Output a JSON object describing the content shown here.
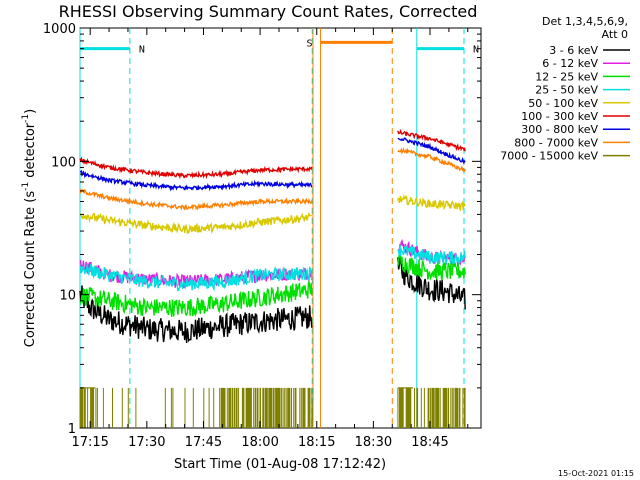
{
  "chart_data": {
    "type": "line",
    "title": "RHESSI Observing Summary Count Rates, Corrected",
    "xlabel": "Start Time (01-Aug-08 17:12:42)",
    "ylabel_main": "Corrected Count Rate (s",
    "ylabel_sup1": "-1",
    "ylabel_mid": " detector",
    "ylabel_sup2": "-1",
    "ylabel_end": ")",
    "y_scale": "log",
    "ylim": [
      1,
      1000
    ],
    "xlim_minutes": [
      -2.7,
      103.5
    ],
    "x_ticks": [
      "17:15",
      "17:30",
      "17:45",
      "18:00",
      "18:15",
      "18:30",
      "18:45"
    ],
    "y_ticks": [
      "1",
      "10",
      "100",
      "1000"
    ],
    "footer": "15-Oct-2021 01:15",
    "legend": {
      "placement": "top-right",
      "header1": "Det 1,3,4,5,6,9,",
      "header2": "Att 0",
      "entries": [
        {
          "label": "3 - 6 keV",
          "color": "#000000"
        },
        {
          "label": "6 - 12 keV",
          "color": "#e020e0"
        },
        {
          "label": "12 - 25 keV",
          "color": "#00e000"
        },
        {
          "label": "25 - 50 keV",
          "color": "#00e0e0"
        },
        {
          "label": "50 - 100 keV",
          "color": "#d8c800"
        },
        {
          "label": "100 - 300 keV",
          "color": "#e00000"
        },
        {
          "label": "300 - 800 keV",
          "color": "#0000e0"
        },
        {
          "label": "800 - 7000 keV",
          "color": "#ff8000"
        },
        {
          "label": "7000 - 15000 keV",
          "color": "#808000"
        }
      ]
    },
    "flags": [
      {
        "label": "N",
        "color": "#00e0e0",
        "start": -2.7,
        "end": 10.5,
        "level": 700
      },
      {
        "label": "N",
        "color": "#00e0e0",
        "start": 86.5,
        "end": 99.0,
        "level": 700
      },
      {
        "label": "S",
        "color": "#ff8000",
        "start": 3.0,
        "end": 1.7,
        "level": 780,
        "span": [
          61.0,
          80.0
        ]
      }
    ],
    "vlines": [
      {
        "t": -2.7,
        "color": "#00e0e0",
        "style": "solid"
      },
      {
        "t": 10.5,
        "color": "#00e0e0",
        "style": "dashed"
      },
      {
        "t": 58.8,
        "color": "#00e0e0",
        "style": "dashed"
      },
      {
        "t": 59.0,
        "color": "#ff8000",
        "style": "solid"
      },
      {
        "t": 61.0,
        "color": "#ff8000",
        "style": "solid"
      },
      {
        "t": 80.0,
        "color": "#ff8000",
        "style": "dashed"
      },
      {
        "t": 86.5,
        "color": "#00e0e0",
        "style": "solid"
      },
      {
        "t": 99.0,
        "color": "#00e0e0",
        "style": "dashed"
      }
    ],
    "segments": [
      [
        -2.7,
        58.8
      ],
      [
        81.5,
        99.5
      ]
    ],
    "series": [
      {
        "name": "3 - 6 keV",
        "color": "#000000",
        "seg1": [
          [
            -2.7,
            10
          ],
          [
            0,
            8
          ],
          [
            5,
            6.5
          ],
          [
            15,
            5.5
          ],
          [
            25,
            5.3
          ],
          [
            35,
            5.8
          ],
          [
            45,
            6.3
          ],
          [
            58.8,
            6.8
          ]
        ],
        "seg2": [
          [
            81.5,
            16
          ],
          [
            85,
            13
          ],
          [
            90,
            11
          ],
          [
            95,
            10.5
          ],
          [
            99.5,
            9
          ]
        ],
        "noise": 0.09
      },
      {
        "name": "6 - 12 keV",
        "color": "#e020e0",
        "seg1": [
          [
            -2.7,
            17
          ],
          [
            5,
            14
          ],
          [
            15,
            13
          ],
          [
            25,
            12.5
          ],
          [
            35,
            13
          ],
          [
            45,
            14
          ],
          [
            58.8,
            14.5
          ]
        ],
        "seg2": [
          [
            81.5,
            24
          ],
          [
            90,
            19
          ],
          [
            99.5,
            18.5
          ]
        ],
        "noise": 0.05
      },
      {
        "name": "12 - 25 keV",
        "color": "#00e000",
        "seg1": [
          [
            -2.7,
            10
          ],
          [
            5,
            9
          ],
          [
            15,
            8
          ],
          [
            25,
            8
          ],
          [
            35,
            8.5
          ],
          [
            45,
            9.5
          ],
          [
            58.8,
            11
          ]
        ],
        "seg2": [
          [
            81.5,
            18
          ],
          [
            90,
            15
          ],
          [
            99.5,
            15
          ]
        ],
        "noise": 0.07
      },
      {
        "name": "25 - 50 keV",
        "color": "#00e0e0",
        "seg1": [
          [
            -2.7,
            16
          ],
          [
            5,
            14
          ],
          [
            15,
            12.5
          ],
          [
            25,
            12
          ],
          [
            35,
            12.5
          ],
          [
            45,
            14
          ],
          [
            58.8,
            14.5
          ]
        ],
        "seg2": [
          [
            81.5,
            22
          ],
          [
            90,
            19
          ],
          [
            99.5,
            19
          ]
        ],
        "noise": 0.05
      },
      {
        "name": "50 - 100 keV",
        "color": "#d8c800",
        "seg1": [
          [
            -2.7,
            40
          ],
          [
            5,
            36
          ],
          [
            15,
            33
          ],
          [
            25,
            31
          ],
          [
            35,
            32
          ],
          [
            45,
            35
          ],
          [
            58.8,
            38
          ]
        ],
        "seg2": [
          [
            81.5,
            52
          ],
          [
            90,
            48
          ],
          [
            99.5,
            46
          ]
        ],
        "noise": 0.03
      },
      {
        "name": "100 - 300 keV",
        "color": "#e00000",
        "seg1": [
          [
            -2.7,
            102
          ],
          [
            5,
            90
          ],
          [
            15,
            82
          ],
          [
            25,
            78
          ],
          [
            35,
            80
          ],
          [
            45,
            86
          ],
          [
            58.8,
            88
          ]
        ],
        "seg2": [
          [
            81.5,
            165
          ],
          [
            90,
            148
          ],
          [
            99.5,
            122
          ]
        ],
        "noise": 0.015
      },
      {
        "name": "300 - 800 keV",
        "color": "#0000e0",
        "seg1": [
          [
            -2.7,
            82
          ],
          [
            5,
            72
          ],
          [
            15,
            66
          ],
          [
            25,
            63
          ],
          [
            35,
            65
          ],
          [
            45,
            68
          ],
          [
            58.8,
            66
          ]
        ],
        "seg2": [
          [
            81.5,
            150
          ],
          [
            90,
            128
          ],
          [
            99.5,
            98
          ]
        ],
        "noise": 0.015
      },
      {
        "name": "800 - 7000 keV",
        "color": "#ff8000",
        "seg1": [
          [
            -2.7,
            60
          ],
          [
            5,
            53
          ],
          [
            15,
            48
          ],
          [
            25,
            45
          ],
          [
            35,
            47
          ],
          [
            45,
            50
          ],
          [
            58.8,
            50
          ]
        ],
        "seg2": [
          [
            81.5,
            122
          ],
          [
            90,
            108
          ],
          [
            99.5,
            85
          ]
        ],
        "noise": 0.015
      }
    ],
    "gated_series": {
      "name": "7000 - 15000 keV",
      "color": "#808000",
      "low": 1,
      "high": 2
    },
    "gaps": [
      [
        58.8,
        81.5
      ]
    ]
  }
}
